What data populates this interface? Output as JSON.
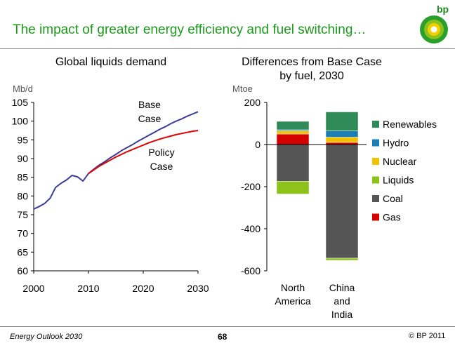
{
  "header": {
    "title": "The impact of greater energy efficiency and fuel switching…",
    "logo_text": "bp"
  },
  "footer": {
    "left": "Energy Outlook 2030",
    "page": "68",
    "right": "© BP 2011"
  },
  "colors": {
    "title": "#1a9a1a",
    "base_case": "#3b3b9a",
    "policy_case": "#e00000",
    "renewables": "#2e8b57",
    "hydro": "#1a7fb5",
    "nuclear": "#f2c200",
    "liquids": "#8cc21a",
    "coal": "#555555",
    "gas": "#d40000"
  },
  "chart_data": [
    {
      "type": "line",
      "title": "Global liquids demand",
      "ylabel": "Mb/d",
      "xlim": [
        2000,
        2030
      ],
      "ylim": [
        60,
        105
      ],
      "yticks": [
        60,
        65,
        70,
        75,
        80,
        85,
        90,
        95,
        100,
        105
      ],
      "xticks": [
        2000,
        2010,
        2020,
        2030
      ],
      "series": [
        {
          "name": "Base Case",
          "label_lines": [
            "Base",
            "Case"
          ],
          "points": [
            [
              2000,
              76.5
            ],
            [
              2001,
              77.2
            ],
            [
              2002,
              78.0
            ],
            [
              2003,
              79.4
            ],
            [
              2004,
              82.3
            ],
            [
              2005,
              83.4
            ],
            [
              2006,
              84.3
            ],
            [
              2007,
              85.5
            ],
            [
              2008,
              85.1
            ],
            [
              2009,
              84.0
            ],
            [
              2010,
              86.0
            ],
            [
              2011,
              87.2
            ],
            [
              2012,
              88.3
            ],
            [
              2013,
              89.2
            ],
            [
              2014,
              90.2
            ],
            [
              2015,
              91.1
            ],
            [
              2016,
              92.1
            ],
            [
              2017,
              92.9
            ],
            [
              2018,
              93.7
            ],
            [
              2019,
              94.6
            ],
            [
              2020,
              95.4
            ],
            [
              2021,
              96.2
            ],
            [
              2022,
              97.0
            ],
            [
              2023,
              97.8
            ],
            [
              2024,
              98.5
            ],
            [
              2025,
              99.3
            ],
            [
              2026,
              100.0
            ],
            [
              2027,
              100.6
            ],
            [
              2028,
              101.3
            ],
            [
              2029,
              101.9
            ],
            [
              2030,
              102.5
            ]
          ]
        },
        {
          "name": "Policy Case",
          "label_lines": [
            "Policy",
            "Case"
          ],
          "points": [
            [
              2010,
              86.0
            ],
            [
              2011,
              87.0
            ],
            [
              2012,
              88.0
            ],
            [
              2013,
              88.8
            ],
            [
              2014,
              89.6
            ],
            [
              2015,
              90.4
            ],
            [
              2016,
              91.1
            ],
            [
              2017,
              91.8
            ],
            [
              2018,
              92.4
            ],
            [
              2019,
              93.0
            ],
            [
              2020,
              93.6
            ],
            [
              2021,
              94.2
            ],
            [
              2022,
              94.7
            ],
            [
              2023,
              95.2
            ],
            [
              2024,
              95.6
            ],
            [
              2025,
              96.0
            ],
            [
              2026,
              96.4
            ],
            [
              2027,
              96.7
            ],
            [
              2028,
              97.0
            ],
            [
              2029,
              97.3
            ],
            [
              2030,
              97.5
            ]
          ]
        }
      ]
    },
    {
      "type": "bar",
      "stacked": true,
      "title": "Differences from Base Case by fuel, 2030",
      "title_lines": [
        "Differences from Base Case",
        "by fuel, 2030"
      ],
      "ylabel": "Mtoe",
      "ylim": [
        -600,
        200
      ],
      "yticks": [
        200,
        0,
        -200,
        -400,
        -600
      ],
      "categories": [
        "North America",
        "China and India"
      ],
      "category_lines": [
        [
          "North",
          "America"
        ],
        [
          "China",
          "and",
          "India"
        ]
      ],
      "series": [
        {
          "name": "Renewables",
          "values": [
            40,
            90
          ]
        },
        {
          "name": "Hydro",
          "values": [
            5,
            30
          ]
        },
        {
          "name": "Nuclear",
          "values": [
            15,
            25
          ]
        },
        {
          "name": "Liquids",
          "values": [
            -60,
            -10
          ]
        },
        {
          "name": "Coal",
          "values": [
            -175,
            -540
          ]
        },
        {
          "name": "Gas",
          "values": [
            50,
            10
          ]
        }
      ],
      "legend": "right"
    }
  ]
}
